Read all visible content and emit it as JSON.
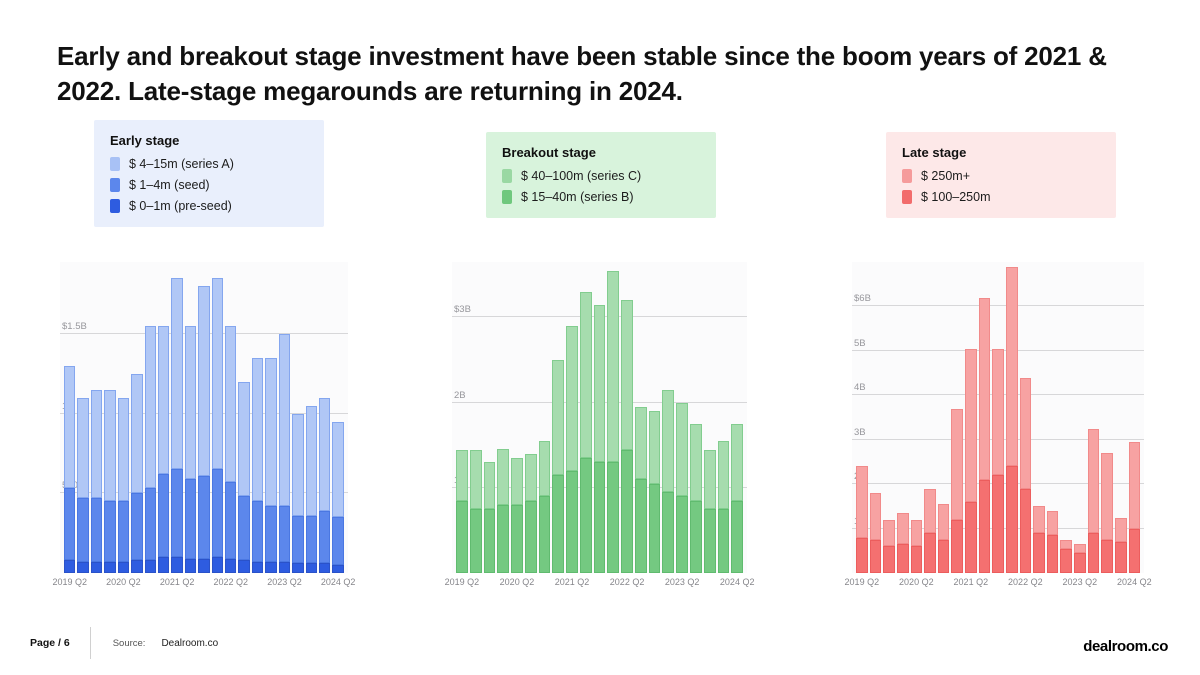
{
  "title": "Early and breakout stage investment have been stable since the boom years of 2021 & 2022. Late-stage megarounds are returning in 2024.",
  "footer": {
    "page_label": "Page / 6",
    "source_label": "Source:",
    "source_value": "Dealroom.co",
    "brand": "dealroom.co"
  },
  "chart_data": [
    {
      "type": "bar",
      "stacked": true,
      "title": "Early stage",
      "unit": "$B",
      "legend_bg": "#e9effc",
      "legend_position": "top",
      "grid": true,
      "legend": [
        {
          "label": "$ 4–15m (series A)",
          "color": "#a8c1f5"
        },
        {
          "label": "$ 1–4m (seed)",
          "color": "#5c87ec"
        },
        {
          "label": "$ 0–1m (pre-seed)",
          "color": "#2e5ce0"
        }
      ],
      "categories": [
        "2019 Q2",
        "2019 Q3",
        "2019 Q4",
        "2020 Q1",
        "2020 Q2",
        "2020 Q3",
        "2020 Q4",
        "2021 Q1",
        "2021 Q2",
        "2021 Q3",
        "2021 Q4",
        "2022 Q1",
        "2022 Q2",
        "2022 Q3",
        "2022 Q4",
        "2023 Q1",
        "2023 Q2",
        "2023 Q3",
        "2023 Q4",
        "2024 Q1",
        "2024 Q2"
      ],
      "x_ticks": [
        "2019 Q2",
        "2020 Q2",
        "2021 Q2",
        "2022 Q2",
        "2023 Q2",
        "2024 Q2"
      ],
      "ylim": [
        0,
        1.95
      ],
      "gridlines": [
        {
          "value": 0.5,
          "label": "500M"
        },
        {
          "value": 1.0,
          "label": "1B"
        },
        {
          "value": 1.5,
          "label": "$1.5B"
        }
      ],
      "series": [
        {
          "name": "$ 0–1m (pre-seed)",
          "color": "#2e5ce0",
          "border": "#2a52c9",
          "values": [
            0.08,
            0.07,
            0.07,
            0.07,
            0.07,
            0.08,
            0.08,
            0.1,
            0.1,
            0.09,
            0.09,
            0.1,
            0.09,
            0.08,
            0.07,
            0.07,
            0.07,
            0.06,
            0.06,
            0.06,
            0.05
          ]
        },
        {
          "name": "$ 1–4m (seed)",
          "color": "#5c87ec",
          "border": "#4a77e2",
          "values": [
            0.45,
            0.4,
            0.4,
            0.38,
            0.38,
            0.42,
            0.45,
            0.52,
            0.55,
            0.5,
            0.52,
            0.55,
            0.48,
            0.4,
            0.38,
            0.35,
            0.35,
            0.3,
            0.3,
            0.33,
            0.3
          ]
        },
        {
          "name": "$ 4–15m (series A)",
          "color": "#b0c7f6",
          "border": "#84a6ef",
          "values": [
            0.77,
            0.63,
            0.68,
            0.7,
            0.65,
            0.75,
            1.02,
            0.93,
            1.2,
            0.96,
            1.19,
            1.2,
            0.98,
            0.72,
            0.9,
            0.93,
            1.08,
            0.64,
            0.69,
            0.71,
            0.6
          ]
        }
      ]
    },
    {
      "type": "bar",
      "stacked": true,
      "title": "Breakout stage",
      "unit": "$B",
      "legend_bg": "#d8f3dc",
      "legend_position": "top",
      "grid": true,
      "legend": [
        {
          "label": "$ 40–100m (series C)",
          "color": "#9ad8a3"
        },
        {
          "label": "$ 15–40m (series B)",
          "color": "#6fc87d"
        }
      ],
      "categories": [
        "2019 Q2",
        "2019 Q3",
        "2019 Q4",
        "2020 Q1",
        "2020 Q2",
        "2020 Q3",
        "2020 Q4",
        "2021 Q1",
        "2021 Q2",
        "2021 Q3",
        "2021 Q4",
        "2022 Q1",
        "2022 Q2",
        "2022 Q3",
        "2022 Q4",
        "2023 Q1",
        "2023 Q2",
        "2023 Q3",
        "2023 Q4",
        "2024 Q1",
        "2024 Q2"
      ],
      "x_ticks": [
        "2019 Q2",
        "2020 Q2",
        "2021 Q2",
        "2022 Q2",
        "2023 Q2",
        "2024 Q2"
      ],
      "ylim": [
        0,
        3.65
      ],
      "gridlines": [
        {
          "value": 1,
          "label": "1B"
        },
        {
          "value": 2,
          "label": "2B"
        },
        {
          "value": 3,
          "label": "$3B"
        }
      ],
      "series": [
        {
          "name": "$ 15–40m (series B)",
          "color": "#74c981",
          "border": "#60bb6f",
          "values": [
            0.85,
            0.75,
            0.75,
            0.8,
            0.8,
            0.85,
            0.9,
            1.15,
            1.2,
            1.35,
            1.3,
            1.3,
            1.45,
            1.1,
            1.05,
            0.95,
            0.9,
            0.85,
            0.75,
            0.75,
            0.85
          ]
        },
        {
          "name": "$ 40–100m (series C)",
          "color": "#a6dcae",
          "border": "#82cd8f",
          "values": [
            0.6,
            0.7,
            0.55,
            0.65,
            0.55,
            0.55,
            0.65,
            1.35,
            1.7,
            1.95,
            1.85,
            2.25,
            1.75,
            0.85,
            0.85,
            1.2,
            1.1,
            0.9,
            0.7,
            0.8,
            0.9
          ]
        }
      ]
    },
    {
      "type": "bar",
      "stacked": true,
      "title": "Late stage",
      "unit": "$B",
      "legend_bg": "#fde8e8",
      "legend_position": "top",
      "grid": true,
      "legend": [
        {
          "label": "$ 250m+",
          "color": "#f59b9b"
        },
        {
          "label": "$ 100–250m",
          "color": "#f26c6c"
        }
      ],
      "categories": [
        "2019 Q2",
        "2019 Q3",
        "2019 Q4",
        "2020 Q1",
        "2020 Q2",
        "2020 Q3",
        "2020 Q4",
        "2021 Q1",
        "2021 Q2",
        "2021 Q3",
        "2021 Q4",
        "2022 Q1",
        "2022 Q2",
        "2022 Q3",
        "2022 Q4",
        "2023 Q1",
        "2023 Q2",
        "2023 Q3",
        "2023 Q4",
        "2024 Q1",
        "2024 Q2"
      ],
      "x_ticks": [
        "2019 Q2",
        "2020 Q2",
        "2021 Q2",
        "2022 Q2",
        "2023 Q2",
        "2024 Q2"
      ],
      "ylim": [
        0,
        7.0
      ],
      "gridlines": [
        {
          "value": 1,
          "label": "1B"
        },
        {
          "value": 2,
          "label": "2B"
        },
        {
          "value": 3,
          "label": "3B"
        },
        {
          "value": 4,
          "label": "4B"
        },
        {
          "value": 5,
          "label": "5B"
        },
        {
          "value": 6,
          "label": "$6B"
        }
      ],
      "series": [
        {
          "name": "$ 100–250m",
          "color": "#f47070",
          "border": "#ec5d5d",
          "values": [
            0.8,
            0.75,
            0.6,
            0.65,
            0.6,
            0.9,
            0.75,
            1.2,
            1.6,
            2.1,
            2.2,
            2.4,
            1.9,
            0.9,
            0.85,
            0.55,
            0.45,
            0.9,
            0.75,
            0.7,
            1.0
          ]
        },
        {
          "name": "$ 250m+",
          "color": "#f7a2a2",
          "border": "#f18a8a",
          "values": [
            1.6,
            1.05,
            0.6,
            0.7,
            0.6,
            1.0,
            0.8,
            2.5,
            3.45,
            4.1,
            2.85,
            4.5,
            2.5,
            0.6,
            0.55,
            0.2,
            0.2,
            2.35,
            1.95,
            0.55,
            1.95
          ]
        }
      ]
    }
  ]
}
